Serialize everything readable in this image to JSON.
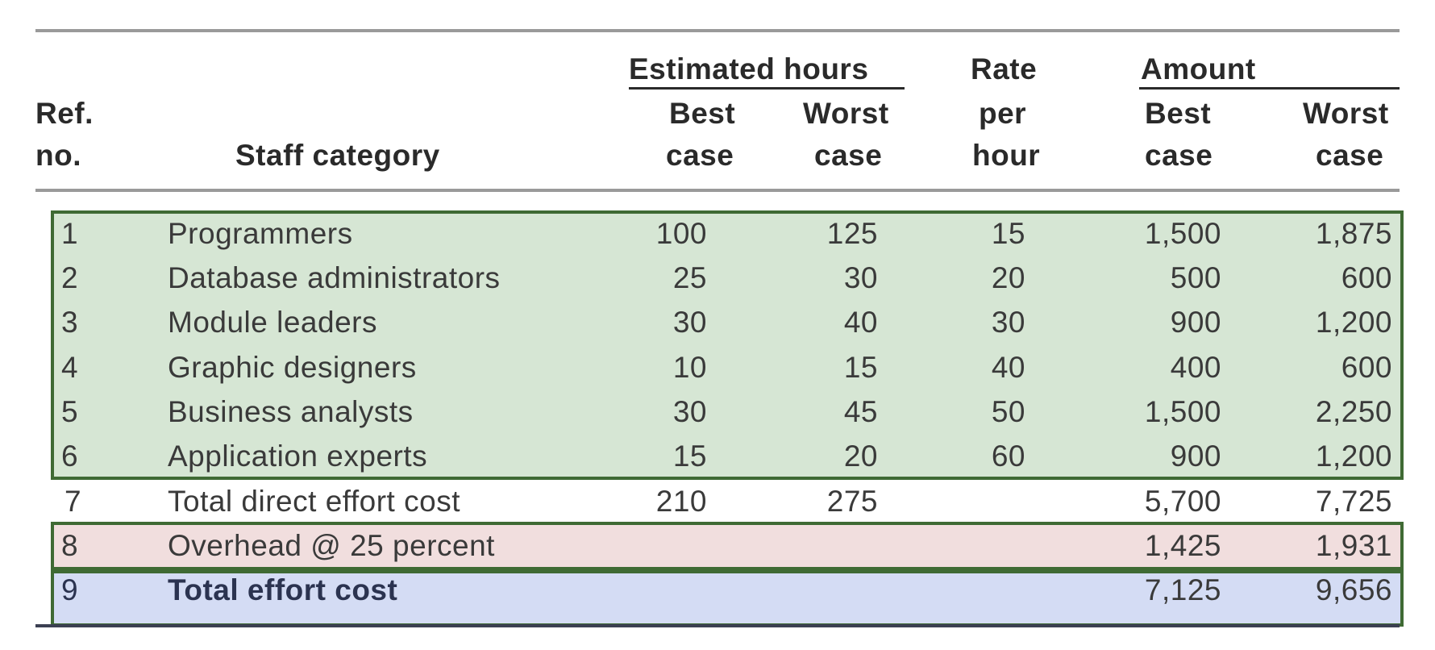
{
  "headers": {
    "ref_line1": "Ref.",
    "ref_line2": "no.",
    "staff_category": "Staff category",
    "estimated_hours": "Estimated hours",
    "best_line1": "Best",
    "best_line2": "case",
    "worst_line1": "Worst",
    "worst_line2": "case",
    "rate_line1": "Rate",
    "rate_line2": "per",
    "rate_line3": "hour",
    "amount": "Amount",
    "amt_best_line1": "Best",
    "amt_best_line2": "case",
    "amt_worst_line1": "Worst",
    "amt_worst_line2": "case"
  },
  "rows": [
    {
      "ref": "1",
      "category": "Programmers",
      "hours_best": "100",
      "hours_worst": "125",
      "rate": "15",
      "amount_best": "1,500",
      "amount_worst": "1,875"
    },
    {
      "ref": "2",
      "category": "Database administrators",
      "hours_best": "25",
      "hours_worst": "30",
      "rate": "20",
      "amount_best": "500",
      "amount_worst": "600"
    },
    {
      "ref": "3",
      "category": "Module leaders",
      "hours_best": "30",
      "hours_worst": "40",
      "rate": "30",
      "amount_best": "900",
      "amount_worst": "1,200"
    },
    {
      "ref": "4",
      "category": "Graphic designers",
      "hours_best": "10",
      "hours_worst": "15",
      "rate": "40",
      "amount_best": "400",
      "amount_worst": "600"
    },
    {
      "ref": "5",
      "category": "Business analysts",
      "hours_best": "30",
      "hours_worst": "45",
      "rate": "50",
      "amount_best": "1,500",
      "amount_worst": "2,250"
    },
    {
      "ref": "6",
      "category": "Application experts",
      "hours_best": "15",
      "hours_worst": "20",
      "rate": "60",
      "amount_best": "900",
      "amount_worst": "1,200"
    },
    {
      "ref": "7",
      "category": "Total direct effort cost",
      "hours_best": "210",
      "hours_worst": "275",
      "rate": "",
      "amount_best": "5,700",
      "amount_worst": "7,725"
    },
    {
      "ref": "8",
      "category": "Overhead @ 25 percent",
      "hours_best": "",
      "hours_worst": "",
      "rate": "",
      "amount_best": "1,425",
      "amount_worst": "1,931"
    },
    {
      "ref": "9",
      "category": "Total effort cost",
      "hours_best": "",
      "hours_worst": "",
      "rate": "",
      "amount_best": "7,125",
      "amount_worst": "9,656"
    }
  ],
  "colors": {
    "staff_band": "#d6e6d4",
    "overhead_band": "#f1dede",
    "total_band": "#d4dcf4",
    "band_border": "#3f6a34"
  }
}
